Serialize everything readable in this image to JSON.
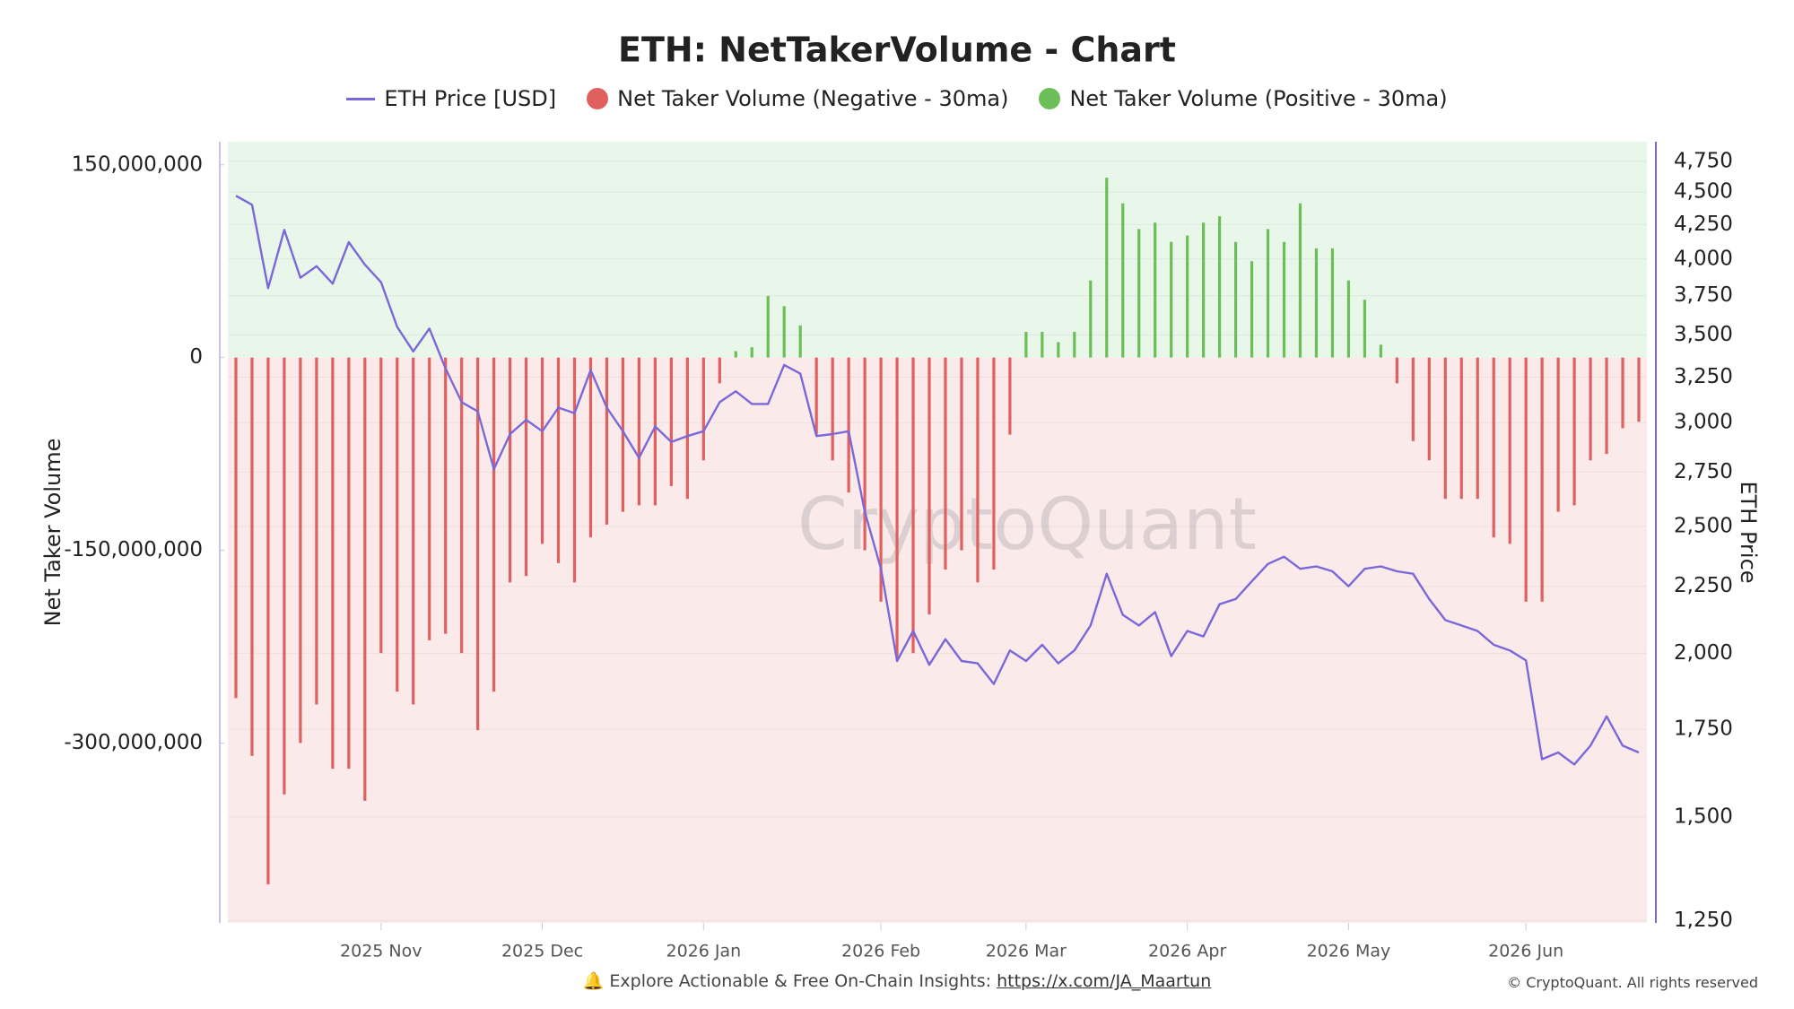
{
  "chart_data": {
    "type": "combo",
    "title": "ETH: NetTakerVolume - Chart",
    "y_label": "Net Taker Volume",
    "y2_label": "ETH Price",
    "watermark": "CryptoQuant",
    "footer_text": "🔔 Explore Actionable & Free On-Chain Insights:",
    "footer_link": "https://x.com/JA_Maartun",
    "copyright": "© CryptoQuant. All rights reserved",
    "categories": [
      null,
      null,
      null,
      null,
      null,
      null,
      null,
      null,
      null,
      "2025 Nov",
      null,
      null,
      null,
      null,
      null,
      null,
      null,
      null,
      null,
      "2025 Dec",
      null,
      null,
      null,
      null,
      null,
      null,
      null,
      null,
      null,
      "2026 Jan",
      null,
      null,
      null,
      null,
      null,
      null,
      null,
      null,
      null,
      null,
      "2026 Feb",
      null,
      null,
      null,
      null,
      null,
      null,
      null,
      null,
      "2026 Mar",
      null,
      null,
      null,
      null,
      null,
      null,
      null,
      null,
      null,
      "2026 Apr",
      null,
      null,
      null,
      null,
      null,
      null,
      null,
      null,
      null,
      "2026 May",
      null,
      null,
      null,
      null,
      null,
      null,
      null,
      null,
      null,
      null,
      "2026 Jun",
      null,
      null,
      null,
      null,
      null,
      null,
      null
    ],
    "series": [
      {
        "name": "ETH Price [USD]",
        "type": "line",
        "axis": "y2",
        "color": "#7b68d8",
        "values": [
          4470,
          4400,
          3800,
          4210,
          3870,
          3950,
          3830,
          4120,
          3960,
          3840,
          3550,
          3400,
          3540,
          3300,
          3110,
          3060,
          2765,
          2940,
          3015,
          2955,
          3080,
          3050,
          3290,
          3080,
          2955,
          2820,
          2980,
          2900,
          2930,
          2955,
          3110,
          3170,
          3100,
          3100,
          3320,
          3270,
          2930,
          2940,
          2955,
          2565,
          2320,
          1973,
          2080,
          1960,
          2050,
          1973,
          1965,
          1895,
          2010,
          1973,
          2030,
          1965,
          2010,
          2100,
          2300,
          2140,
          2100,
          2150,
          1990,
          2080,
          2060,
          2180,
          2200,
          2270,
          2340,
          2370,
          2320,
          2330,
          2310,
          2250,
          2320,
          2330,
          2310,
          2300,
          2200,
          2120,
          2100,
          2080,
          2030,
          2010,
          1975,
          1660,
          1680,
          1645,
          1700,
          1790,
          1700,
          1680
        ]
      },
      {
        "name": "Net Taker Volume (Negative - 30ma)",
        "type": "bar",
        "color": "#e06060",
        "values": [
          -265000000,
          -310000000,
          -410000000,
          -340000000,
          -300000000,
          -270000000,
          -320000000,
          -320000000,
          -345000000,
          -230000000,
          -260000000,
          -270000000,
          -220000000,
          -215000000,
          -230000000,
          -290000000,
          -260000000,
          -175000000,
          -170000000,
          -145000000,
          -160000000,
          -175000000,
          -140000000,
          -130000000,
          -120000000,
          -115000000,
          -115000000,
          -100000000,
          -110000000,
          -80000000,
          -20000000,
          null,
          null,
          null,
          null,
          null,
          -60000000,
          -80000000,
          -105000000,
          -150000000,
          -190000000,
          -235000000,
          -230000000,
          -200000000,
          -165000000,
          -150000000,
          -175000000,
          -165000000,
          -60000000,
          null,
          null,
          null,
          null,
          null,
          null,
          null,
          null,
          null,
          null,
          null,
          null,
          null,
          null,
          null,
          null,
          null,
          null,
          null,
          null,
          null,
          null,
          null,
          -20000000,
          -65000000,
          -80000000,
          -110000000,
          -110000000,
          -110000000,
          -140000000,
          -145000000,
          -190000000,
          -190000000,
          -120000000,
          -115000000,
          -80000000,
          -75000000,
          -55000000,
          -50000000
        ]
      },
      {
        "name": "Net Taker Volume (Positive - 30ma)",
        "type": "bar",
        "color": "#6cbf58",
        "values": [
          null,
          null,
          null,
          null,
          null,
          null,
          null,
          null,
          null,
          null,
          null,
          null,
          null,
          null,
          null,
          null,
          null,
          null,
          null,
          null,
          null,
          null,
          null,
          null,
          null,
          null,
          null,
          null,
          null,
          null,
          null,
          5000000,
          8000000,
          48000000,
          40000000,
          25000000,
          null,
          null,
          null,
          null,
          null,
          null,
          null,
          null,
          null,
          null,
          null,
          null,
          null,
          20000000,
          20000000,
          12000000,
          20000000,
          60000000,
          140000000,
          120000000,
          100000000,
          105000000,
          90000000,
          95000000,
          105000000,
          110000000,
          90000000,
          75000000,
          100000000,
          90000000,
          120000000,
          85000000,
          85000000,
          60000000,
          45000000,
          10000000,
          null,
          null,
          null,
          null,
          null,
          null,
          null,
          null,
          null,
          null,
          null,
          null,
          null,
          null,
          null,
          null
        ]
      }
    ],
    "ylim": [
      -440000000,
      168000000
    ],
    "yticks": [
      {
        "value": 150000000,
        "label": "150,000,000"
      },
      0,
      {
        "value": -150000000,
        "label": "-150,000,000"
      },
      {
        "value": -300000000,
        "label": "-300,000,000"
      }
    ],
    "y2lim": [
      1245,
      4916
    ],
    "y2log": true,
    "y2ticks": [
      {
        "value": 1250,
        "label": "1,250"
      },
      {
        "value": 1500,
        "label": "1,500"
      },
      {
        "value": 1750,
        "label": "1,750"
      },
      {
        "value": 2000,
        "label": "2,000"
      },
      {
        "value": 2250,
        "label": "2,250"
      },
      {
        "value": 2500,
        "label": "2,500"
      },
      {
        "value": 2750,
        "label": "2,750"
      },
      {
        "value": 3000,
        "label": "3,000"
      },
      {
        "value": 3250,
        "label": "3,250"
      },
      {
        "value": 3500,
        "label": "3,500"
      },
      {
        "value": 3750,
        "label": "3,750"
      },
      {
        "value": 4000,
        "label": "4,000"
      },
      {
        "value": 4250,
        "label": "4,250"
      },
      {
        "value": 4500,
        "label": "4,500"
      },
      {
        "value": 4750,
        "label": "4,750"
      }
    ],
    "grid": true
  }
}
